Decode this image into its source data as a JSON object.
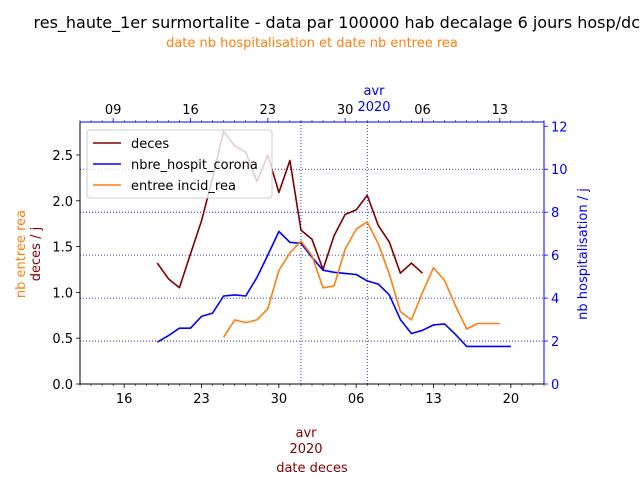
{
  "chart_data": {
    "type": "line",
    "title": "res_haute_1er surmortalite - data par 100000 hab decalage 6 jours hosp/dc",
    "subtitle": "date nb hospitalisation et date nb entree rea",
    "bottom_axis": {
      "ticks": [
        {
          "x": "2020-03-16",
          "label": "16"
        },
        {
          "x": "2020-03-23",
          "label": "23"
        },
        {
          "x": "2020-03-30",
          "label": "30"
        },
        {
          "x": "2020-04-06",
          "label": "06"
        },
        {
          "x": "2020-04-13",
          "label": "13"
        },
        {
          "x": "2020-04-20",
          "label": "20"
        }
      ],
      "month_label": "avr",
      "year_label": "2020",
      "xlabel": "date deces",
      "xlim": [
        "2020-03-12",
        "2020-04-23"
      ]
    },
    "top_axis": {
      "ticks": [
        {
          "x": "2020-03-09",
          "label": "09"
        },
        {
          "x": "2020-03-16",
          "label": "16"
        },
        {
          "x": "2020-03-23",
          "label": "23"
        },
        {
          "x": "2020-03-30",
          "label": "30"
        },
        {
          "x": "2020-04-06",
          "label": "06"
        },
        {
          "x": "2020-04-13",
          "label": "13"
        }
      ],
      "month_label": "avr",
      "year_label": "2020",
      "xlim": [
        "2020-03-06",
        "2020-04-17"
      ]
    },
    "left_axis": {
      "ylabel_lines": [
        "nb entree rea",
        "deces / j"
      ],
      "ylim": [
        0,
        2.86
      ],
      "ticks": [
        0.0,
        0.5,
        1.0,
        1.5,
        2.0,
        2.5
      ],
      "tick_labels": [
        "0.0",
        "0.5",
        "1.0",
        "1.5",
        "2.0",
        "2.5"
      ]
    },
    "right_axis": {
      "ylabel": "nb hospitalisation / j",
      "ylim": [
        0,
        12.2
      ],
      "ticks": [
        0,
        2,
        4,
        6,
        8,
        10,
        12
      ],
      "tick_labels": [
        "0",
        "2",
        "4",
        "6",
        "8",
        "10",
        "12"
      ]
    },
    "grid": {
      "horizontal_at_right_axis_values": [
        2,
        4,
        6,
        8,
        10
      ],
      "vertical_at_bottom_dates": [
        "2020-04-01",
        "2020-04-07"
      ]
    },
    "legend": {
      "position": "top-left",
      "entries": [
        {
          "label": "deces",
          "color": "#800000"
        },
        {
          "label": "nbre_hospit_corona",
          "color": "#0000ff"
        },
        {
          "label": "entree incid_rea",
          "color": "#ff7f0e"
        }
      ]
    },
    "series": [
      {
        "name": "deces",
        "color": "#800000",
        "axis": "left",
        "x_axis": "bottom",
        "x": [
          "2020-03-19",
          "2020-03-20",
          "2020-03-21",
          "2020-03-22",
          "2020-03-23",
          "2020-03-24",
          "2020-03-25",
          "2020-03-26",
          "2020-03-27",
          "2020-03-28",
          "2020-03-29",
          "2020-03-30",
          "2020-03-31",
          "2020-04-01",
          "2020-04-02",
          "2020-04-03",
          "2020-04-04",
          "2020-04-05",
          "2020-04-06",
          "2020-04-07",
          "2020-04-08",
          "2020-04-09",
          "2020-04-10",
          "2020-04-11",
          "2020-04-12"
        ],
        "values": [
          1.32,
          1.15,
          1.05,
          1.42,
          1.78,
          2.25,
          2.76,
          2.6,
          2.53,
          2.21,
          2.5,
          2.09,
          2.44,
          1.68,
          1.58,
          1.25,
          1.62,
          1.85,
          1.9,
          2.06,
          1.73,
          1.55,
          1.21,
          1.32,
          1.21
        ]
      },
      {
        "name": "nbre_hospit_corona",
        "color": "#0000ff",
        "axis": "right",
        "x_axis": "top",
        "x": [
          "2020-03-13",
          "2020-03-14",
          "2020-03-15",
          "2020-03-16",
          "2020-03-17",
          "2020-03-18",
          "2020-03-19",
          "2020-03-20",
          "2020-03-21",
          "2020-03-22",
          "2020-03-23",
          "2020-03-24",
          "2020-03-25",
          "2020-03-26",
          "2020-03-27",
          "2020-03-28",
          "2020-03-29",
          "2020-03-30",
          "2020-03-31",
          "2020-04-01",
          "2020-04-02",
          "2020-04-03",
          "2020-04-04",
          "2020-04-05",
          "2020-04-06",
          "2020-04-07",
          "2020-04-08",
          "2020-04-09",
          "2020-04-10",
          "2020-04-11",
          "2020-04-12",
          "2020-04-13",
          "2020-04-14"
        ],
        "values": [
          1.95,
          2.25,
          2.6,
          2.6,
          3.15,
          3.3,
          4.1,
          4.15,
          4.1,
          4.95,
          6.0,
          7.1,
          6.6,
          6.55,
          5.9,
          5.3,
          5.2,
          5.15,
          5.1,
          4.8,
          4.65,
          4.15,
          3.0,
          2.35,
          2.5,
          2.75,
          2.8,
          2.3,
          1.75,
          1.75,
          1.75,
          1.75,
          1.75
        ]
      },
      {
        "name": "entree incid_rea",
        "color": "#ff7f0e",
        "axis": "left",
        "x_axis": "top",
        "x": [
          "2020-03-19",
          "2020-03-20",
          "2020-03-21",
          "2020-03-22",
          "2020-03-23",
          "2020-03-24",
          "2020-03-25",
          "2020-03-26",
          "2020-03-27",
          "2020-03-28",
          "2020-03-29",
          "2020-03-30",
          "2020-03-31",
          "2020-04-01",
          "2020-04-02",
          "2020-04-03",
          "2020-04-04",
          "2020-04-05",
          "2020-04-06",
          "2020-04-07",
          "2020-04-08",
          "2020-04-09",
          "2020-04-10",
          "2020-04-11",
          "2020-04-12",
          "2020-04-13"
        ],
        "values": [
          0.51,
          0.7,
          0.67,
          0.7,
          0.82,
          1.24,
          1.43,
          1.56,
          1.4,
          1.05,
          1.07,
          1.47,
          1.69,
          1.77,
          1.53,
          1.2,
          0.79,
          0.7,
          1.0,
          1.27,
          1.13,
          0.85,
          0.6,
          0.66,
          0.66,
          0.66
        ]
      }
    ]
  }
}
